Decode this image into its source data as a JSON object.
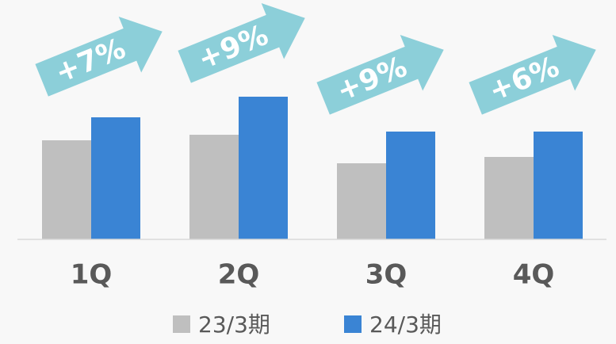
{
  "chart_data": {
    "type": "bar",
    "categories": [
      "1Q",
      "2Q",
      "3Q",
      "4Q"
    ],
    "series": [
      {
        "name": "23/3期",
        "color": "#bfbfbf",
        "values": [
          125,
          132,
          96,
          104
        ]
      },
      {
        "name": "24/3期",
        "color": "#3a84d4",
        "values": [
          154,
          180,
          136,
          136
        ]
      }
    ],
    "annotations": [
      "+7%",
      "+9%",
      "+9%",
      "+6%"
    ],
    "annotation_color": "#8ccfd9",
    "ylim": [
      0,
      302
    ]
  }
}
